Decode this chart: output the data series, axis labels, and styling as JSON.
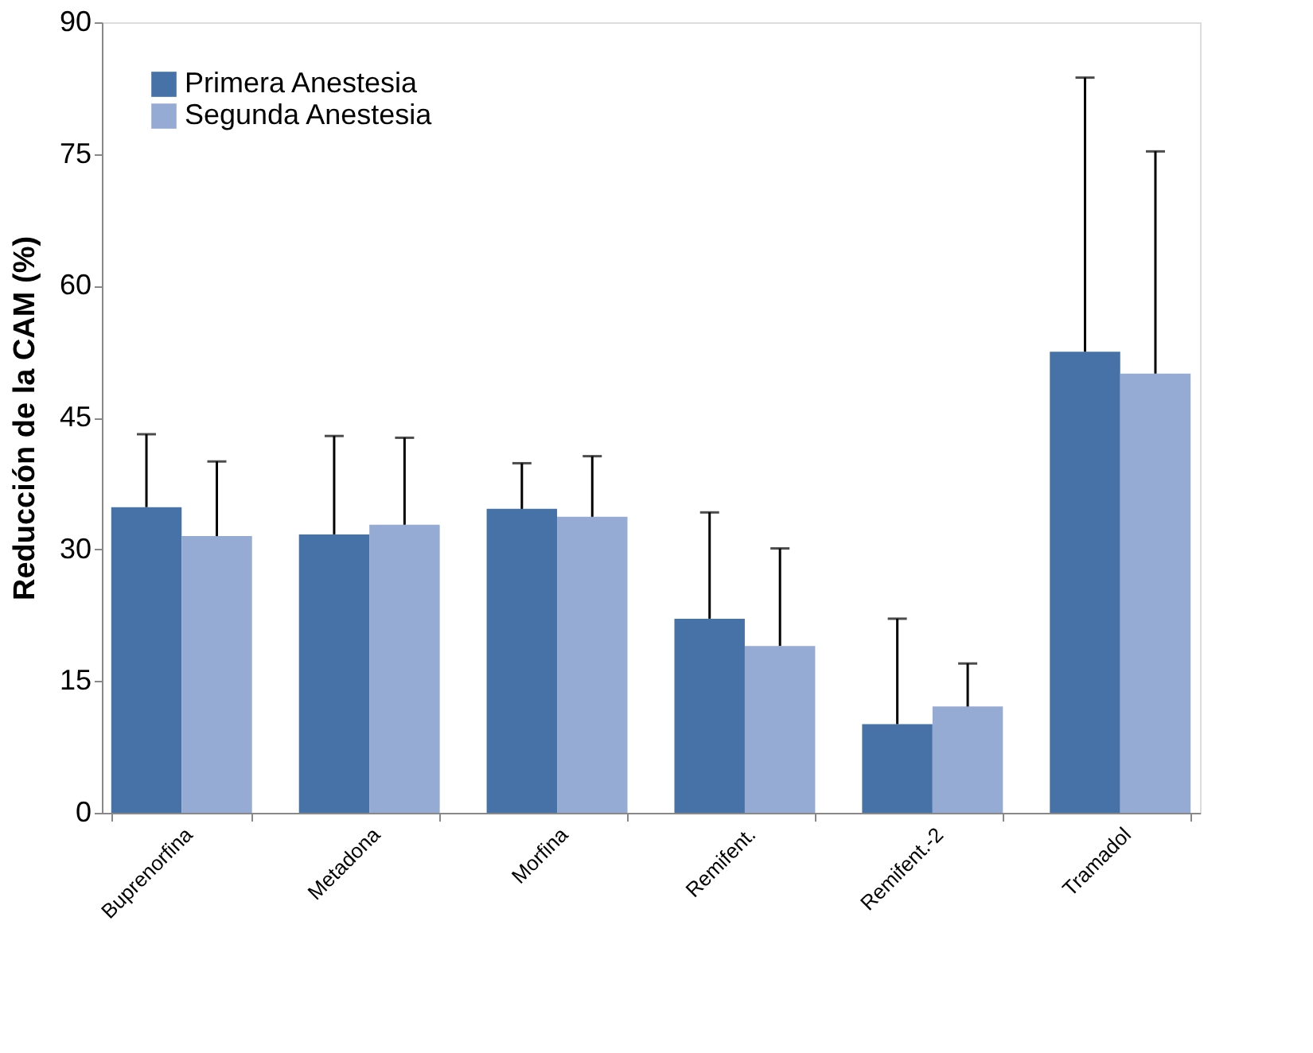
{
  "chart_data": {
    "type": "bar",
    "ylabel": "Reducción de la CAM  (%)",
    "categories": [
      "Buprenorfina",
      "Metadona",
      "Morfina",
      "Remifent.",
      "Remifent.-2",
      "Tramadol"
    ],
    "series": [
      {
        "name": "Primera Anestesia",
        "color": "#4672a8",
        "values": [
          34.8,
          31.7,
          34.6,
          22.1,
          10.1,
          52.5
        ],
        "errors": [
          [
            34.8,
            43.1
          ],
          [
            31.7,
            42.9
          ],
          [
            34.6,
            39.8
          ],
          [
            22.1,
            34.2
          ],
          [
            10.1,
            22.1
          ],
          [
            52.5,
            83.7
          ]
        ]
      },
      {
        "name": "Segunda Anestesia",
        "color": "#96abd3",
        "values": [
          31.5,
          32.8,
          33.7,
          19.0,
          12.1,
          50.0
        ],
        "errors": [
          [
            31.5,
            40.0
          ],
          [
            32.8,
            42.7
          ],
          [
            33.7,
            40.6
          ],
          [
            19.0,
            30.1
          ],
          [
            12.1,
            17.0
          ],
          [
            50.0,
            75.3
          ]
        ]
      }
    ],
    "ylim": [
      0,
      90
    ],
    "yticks": [
      0,
      15,
      30,
      45,
      60,
      75,
      90
    ],
    "grid": false,
    "legend": "top left"
  }
}
